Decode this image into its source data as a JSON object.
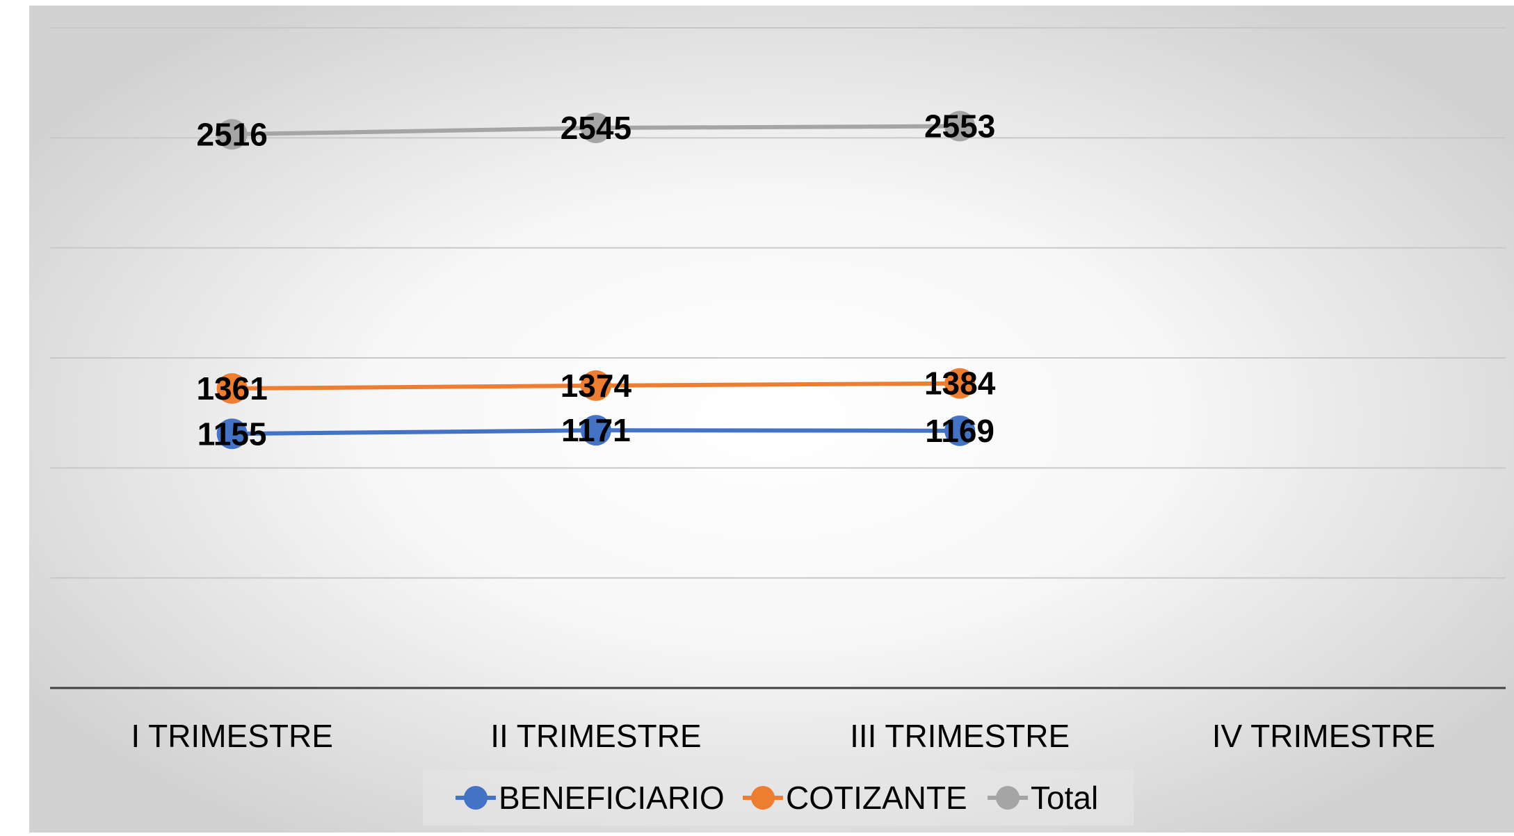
{
  "chart_data": {
    "type": "line",
    "title": "",
    "xlabel": "",
    "ylabel": "",
    "categories": [
      "I TRIMESTRE",
      "II TRIMESTRE",
      "III TRIMESTRE",
      "IV TRIMESTRE"
    ],
    "ylim": [
      0,
      3000
    ],
    "grid": true,
    "legend_position": "bottom",
    "series": [
      {
        "name": "BENEFICIARIO",
        "values": [
          1155,
          1171,
          1169,
          null
        ],
        "color": "#4472C4"
      },
      {
        "name": "COTIZANTE",
        "values": [
          1361,
          1374,
          1384,
          null
        ],
        "color": "#ED7D31"
      },
      {
        "name": "Total",
        "values": [
          2516,
          2545,
          2553,
          null
        ],
        "color": "#A5A5A5"
      }
    ]
  }
}
